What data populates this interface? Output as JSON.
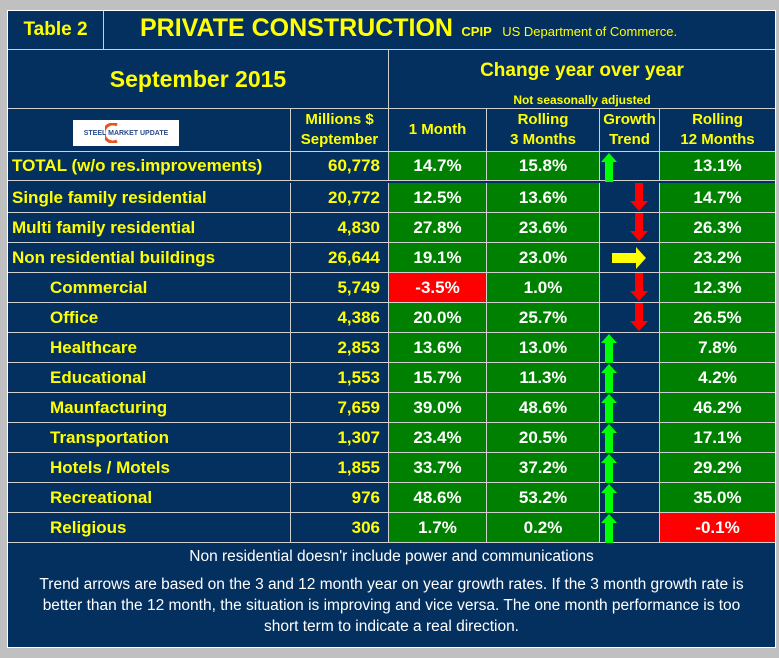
{
  "header": {
    "table_label": "Table 2",
    "title": "PRIVATE CONSTRUCTION",
    "subtitle_code": "CPIP",
    "source": "US Department of Commerce.",
    "period": "September 2015",
    "change_title": "Change year over year",
    "adjust_note": "Not seasonally adjusted",
    "logo_text": "STEEL MARKET UPDATE"
  },
  "columns": {
    "millions": [
      "Millions $",
      "September"
    ],
    "m1": "1 Month",
    "m3": [
      "Rolling",
      "3 Months"
    ],
    "trend": [
      "Growth",
      "Trend"
    ],
    "m12": [
      "Rolling",
      "12 Months"
    ]
  },
  "colors": {
    "navy": "#03305f",
    "green": "#008000",
    "red": "#ff0000",
    "yellow": "#ffff00",
    "up_arrow": "#00ff00",
    "down_arrow": "#ff0000",
    "right_arrow": "#ffff00"
  },
  "rows": [
    {
      "label": "TOTAL (w/o res.improvements)",
      "value": "60,778",
      "m1": "14.7%",
      "m3": "15.8%",
      "trend": "up",
      "m12": "13.1%",
      "indent": false
    },
    {
      "label": "Single family residential",
      "value": "20,772",
      "m1": "12.5%",
      "m3": "13.6%",
      "trend": "down",
      "m12": "14.7%",
      "indent": false
    },
    {
      "label": "Multi family residential",
      "value": "4,830",
      "m1": "27.8%",
      "m3": "23.6%",
      "trend": "down",
      "m12": "26.3%",
      "indent": false
    },
    {
      "label": "Non residential buildings",
      "value": "26,644",
      "m1": "19.1%",
      "m3": "23.0%",
      "trend": "right",
      "m12": "23.2%",
      "indent": false
    },
    {
      "label": "Commercial",
      "value": "5,749",
      "m1": "-3.5%",
      "m3": "1.0%",
      "trend": "down",
      "m12": "12.3%",
      "indent": true
    },
    {
      "label": "Office",
      "value": "4,386",
      "m1": "20.0%",
      "m3": "25.7%",
      "trend": "down",
      "m12": "26.5%",
      "indent": true
    },
    {
      "label": "Healthcare",
      "value": "2,853",
      "m1": "13.6%",
      "m3": "13.0%",
      "trend": "up",
      "m12": "7.8%",
      "indent": true
    },
    {
      "label": "Educational",
      "value": "1,553",
      "m1": "15.7%",
      "m3": "11.3%",
      "trend": "up",
      "m12": "4.2%",
      "indent": true
    },
    {
      "label": "Maunfacturing",
      "value": "7,659",
      "m1": "39.0%",
      "m3": "48.6%",
      "trend": "up",
      "m12": "46.2%",
      "indent": true
    },
    {
      "label": "Transportation",
      "value": "1,307",
      "m1": "23.4%",
      "m3": "20.5%",
      "trend": "up",
      "m12": "17.1%",
      "indent": true
    },
    {
      "label": "Hotels / Motels",
      "value": "1,855",
      "m1": "33.7%",
      "m3": "37.2%",
      "trend": "up",
      "m12": "29.2%",
      "indent": true
    },
    {
      "label": "Recreational",
      "value": "976",
      "m1": "48.6%",
      "m3": "53.2%",
      "trend": "up",
      "m12": "35.0%",
      "indent": true
    },
    {
      "label": "Religious",
      "value": "306",
      "m1": "1.7%",
      "m3": "0.2%",
      "trend": "up",
      "m12": "-0.1%",
      "indent": true
    }
  ],
  "footer": {
    "note": "Non residential doesn'r include power and communications",
    "explanation": "Trend arrows are based on the 3 and 12 month year on year growth rates. If the 3 month growth rate is better than the 12 month, the situation is improving and vice versa. The one month performance is too short term to indicate a real direction."
  }
}
